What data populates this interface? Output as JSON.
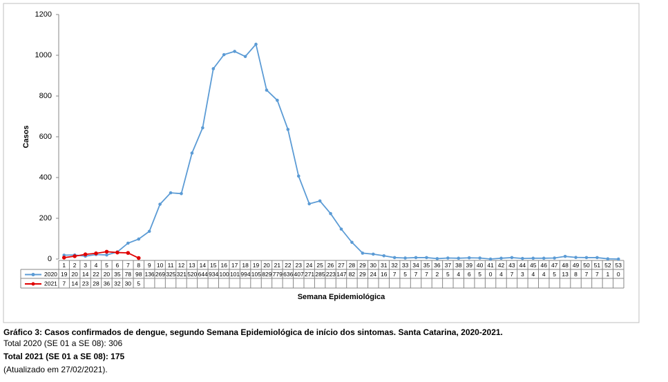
{
  "chart_data": {
    "type": "line",
    "y_label": "Casos",
    "x_label": "Semana Epidemiológica",
    "categories": [
      "1",
      "2",
      "3",
      "4",
      "5",
      "6",
      "7",
      "8",
      "9",
      "10",
      "11",
      "12",
      "13",
      "14",
      "15",
      "16",
      "17",
      "18",
      "19",
      "20",
      "21",
      "22",
      "23",
      "24",
      "25",
      "26",
      "27",
      "28",
      "29",
      "30",
      "31",
      "32",
      "33",
      "34",
      "35",
      "36",
      "37",
      "38",
      "39",
      "40",
      "41",
      "42",
      "43",
      "44",
      "45",
      "46",
      "47",
      "48",
      "49",
      "50",
      "51",
      "52",
      "53"
    ],
    "series": [
      {
        "name": "2020",
        "color": "#5b9bd5",
        "values": [
          19,
          20,
          14,
          22,
          20,
          35,
          78,
          98,
          136,
          269,
          325,
          321,
          520,
          644,
          934,
          1003,
          1019,
          994,
          1054,
          829,
          779,
          636,
          407,
          271,
          285,
          223,
          147,
          82,
          29,
          24,
          16,
          7,
          5,
          7,
          7,
          2,
          5,
          4,
          6,
          5,
          0,
          4,
          7,
          3,
          4,
          4,
          5,
          13,
          8,
          7,
          7,
          1,
          0
        ]
      },
      {
        "name": "2021",
        "color": "#e00000",
        "values": [
          7,
          14,
          23,
          28,
          36,
          32,
          30,
          5,
          null,
          null,
          null,
          null,
          null,
          null,
          null,
          null,
          null,
          null,
          null,
          null,
          null,
          null,
          null,
          null,
          null,
          null,
          null,
          null,
          null,
          null,
          null,
          null,
          null,
          null,
          null,
          null,
          null,
          null,
          null,
          null,
          null,
          null,
          null,
          null,
          null,
          null,
          null,
          null,
          null,
          null,
          null,
          null,
          null
        ]
      }
    ],
    "ylim": [
      0,
      1200
    ],
    "yticks": [
      0,
      200,
      400,
      600,
      800,
      1000,
      1200
    ],
    "grid": false
  },
  "notes": [
    "Gráfico 3: Casos confirmados de dengue, segundo Semana Epidemiológica de início dos sintomas. Santa Catarina, 2020-2021.",
    "Total 2020 (SE 01 a SE 08): 306",
    "Total 2021 (SE 01 a SE 08): 175",
    "(Atualizado em 27/02/2021)."
  ]
}
